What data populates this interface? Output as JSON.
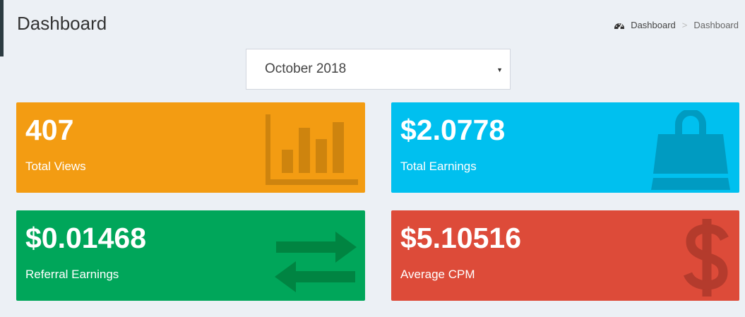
{
  "header": {
    "title": "Dashboard",
    "breadcrumb": {
      "home": "Dashboard",
      "separator": ">",
      "current": "Dashboard"
    }
  },
  "filter": {
    "selected_month": "October 2018",
    "caret": "▼"
  },
  "stats": {
    "views": {
      "value": "407",
      "label": "Total Views",
      "color": "#f39c12",
      "icon": "bar-chart-icon"
    },
    "earnings": {
      "value": "$2.0778",
      "label": "Total Earnings",
      "color": "#00c0ef",
      "icon": "shopping-bag-icon"
    },
    "referral": {
      "value": "$0.01468",
      "label": "Referral Earnings",
      "color": "#00a65a",
      "icon": "exchange-arrows-icon"
    },
    "cpm": {
      "value": "$5.10516",
      "label": "Average CPM",
      "color": "#dd4b39",
      "icon": "dollar-icon"
    }
  }
}
